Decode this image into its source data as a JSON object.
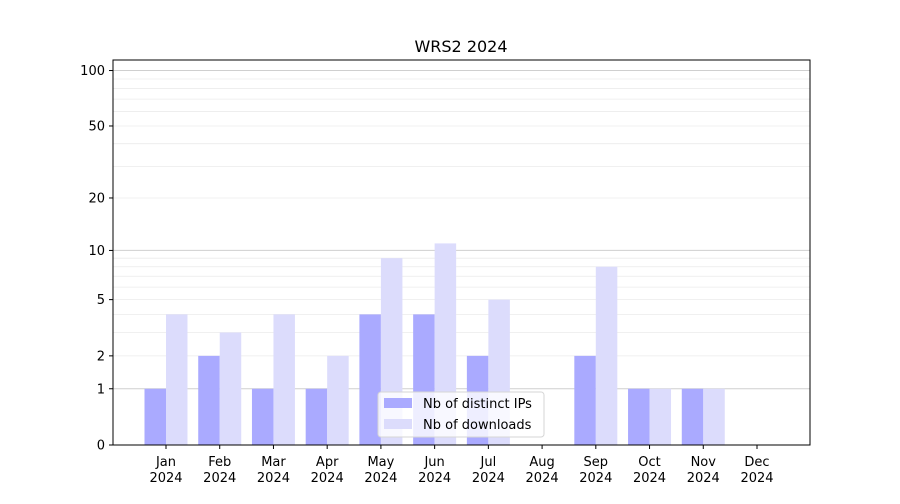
{
  "chart_data": {
    "type": "bar",
    "title": "WRS2 2024",
    "xlabel": "",
    "ylabel": "",
    "yscale": "log(1+x)",
    "ylim": [
      0,
      114
    ],
    "yticks": [
      0,
      1,
      2,
      5,
      10,
      20,
      50,
      100
    ],
    "grid": true,
    "categories": [
      [
        "Jan",
        "2024"
      ],
      [
        "Feb",
        "2024"
      ],
      [
        "Mar",
        "2024"
      ],
      [
        "Apr",
        "2024"
      ],
      [
        "May",
        "2024"
      ],
      [
        "Jun",
        "2024"
      ],
      [
        "Jul",
        "2024"
      ],
      [
        "Aug",
        "2024"
      ],
      [
        "Sep",
        "2024"
      ],
      [
        "Oct",
        "2024"
      ],
      [
        "Nov",
        "2024"
      ],
      [
        "Dec",
        "2024"
      ]
    ],
    "series": [
      {
        "name": "Nb of distinct IPs",
        "color": "#aaaaff",
        "values": [
          1,
          2,
          1,
          1,
          4,
          4,
          2,
          0,
          2,
          1,
          1,
          0
        ]
      },
      {
        "name": "Nb of downloads",
        "color": "#dcdcfc",
        "values": [
          4,
          3,
          4,
          2,
          9,
          11,
          5,
          0,
          8,
          1,
          1,
          0
        ]
      }
    ],
    "legend_position": "lower-center"
  }
}
